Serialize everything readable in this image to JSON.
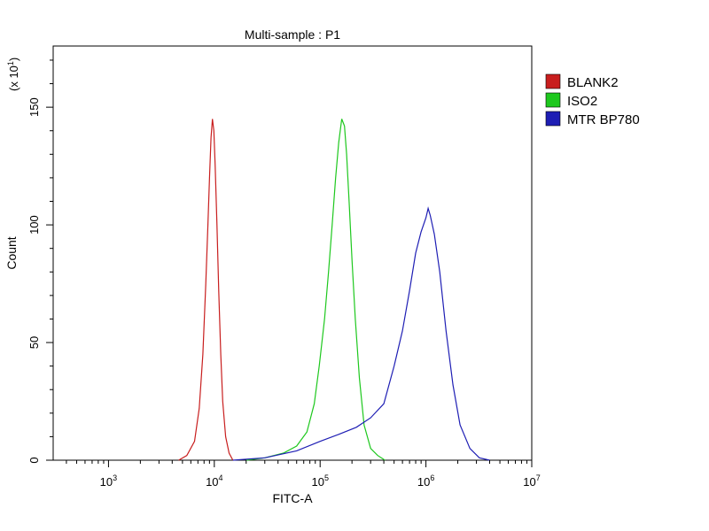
{
  "chart_data": {
    "type": "line",
    "title": "Multi-sample : P1",
    "xlabel": "FITC-A",
    "ylabel": "Count",
    "y_multiplier_label": "(x 10",
    "y_multiplier_exponent": "1",
    "x_scale": "log",
    "xlim": [
      300,
      10000000
    ],
    "ylim": [
      0,
      176
    ],
    "x_ticks": [
      {
        "value": 1000,
        "base": "10",
        "exp": "3"
      },
      {
        "value": 10000,
        "base": "10",
        "exp": "4"
      },
      {
        "value": 100000,
        "base": "10",
        "exp": "5"
      },
      {
        "value": 1000000,
        "base": "10",
        "exp": "6"
      },
      {
        "value": 10000000,
        "base": "10",
        "exp": "7"
      }
    ],
    "y_ticks": [
      {
        "value": 0,
        "label": "0"
      },
      {
        "value": 50,
        "label": "50"
      },
      {
        "value": 100,
        "label": "100"
      },
      {
        "value": 150,
        "label": "150"
      }
    ],
    "grid": false,
    "legend_position": "right",
    "series": [
      {
        "name": "BLANK2",
        "color": "#c81e1e",
        "points": [
          [
            4600,
            0
          ],
          [
            5500,
            2
          ],
          [
            6500,
            8
          ],
          [
            7200,
            22
          ],
          [
            7800,
            45
          ],
          [
            8300,
            75
          ],
          [
            8700,
            100
          ],
          [
            9000,
            120
          ],
          [
            9300,
            137
          ],
          [
            9600,
            145
          ],
          [
            9900,
            140
          ],
          [
            10200,
            125
          ],
          [
            10600,
            100
          ],
          [
            11000,
            72
          ],
          [
            11500,
            45
          ],
          [
            12000,
            25
          ],
          [
            12800,
            10
          ],
          [
            13800,
            3
          ],
          [
            15000,
            0
          ]
        ]
      },
      {
        "name": "ISO2",
        "color": "#1ec81e",
        "points": [
          [
            20000,
            0
          ],
          [
            30000,
            1
          ],
          [
            45000,
            3
          ],
          [
            60000,
            6
          ],
          [
            75000,
            12
          ],
          [
            88000,
            24
          ],
          [
            98000,
            40
          ],
          [
            110000,
            60
          ],
          [
            120000,
            80
          ],
          [
            130000,
            100
          ],
          [
            140000,
            120
          ],
          [
            150000,
            135
          ],
          [
            160000,
            145
          ],
          [
            170000,
            142
          ],
          [
            178000,
            130
          ],
          [
            188000,
            110
          ],
          [
            200000,
            85
          ],
          [
            215000,
            60
          ],
          [
            235000,
            35
          ],
          [
            260000,
            15
          ],
          [
            300000,
            5
          ],
          [
            350000,
            2
          ],
          [
            410000,
            0
          ]
        ]
      },
      {
        "name": "MTR BP780",
        "color": "#1e1eb4",
        "points": [
          [
            15000,
            0
          ],
          [
            30000,
            1
          ],
          [
            60000,
            4
          ],
          [
            100000,
            8
          ],
          [
            150000,
            11
          ],
          [
            220000,
            14
          ],
          [
            300000,
            18
          ],
          [
            400000,
            24
          ],
          [
            500000,
            40
          ],
          [
            600000,
            55
          ],
          [
            700000,
            72
          ],
          [
            800000,
            88
          ],
          [
            900000,
            97
          ],
          [
            1000000,
            103
          ],
          [
            1050000,
            107
          ],
          [
            1100000,
            104
          ],
          [
            1200000,
            96
          ],
          [
            1350000,
            80
          ],
          [
            1550000,
            55
          ],
          [
            1800000,
            32
          ],
          [
            2100000,
            15
          ],
          [
            2600000,
            5
          ],
          [
            3200000,
            1
          ],
          [
            4000000,
            0
          ]
        ]
      }
    ]
  }
}
